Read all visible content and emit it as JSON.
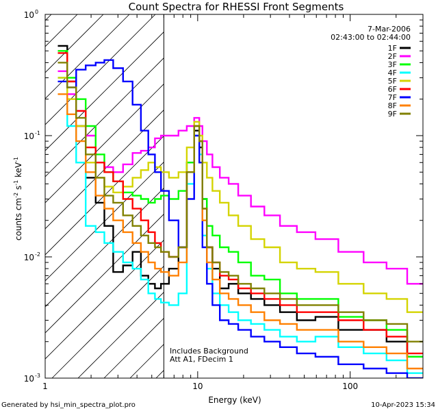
{
  "chart_data": {
    "type": "line",
    "title": "Count Spectra for RHESSI Front Segments",
    "xlabel": "Energy (keV)",
    "ylabel_parts": [
      "counts cm",
      "-2",
      " s",
      "-1",
      " keV",
      "-1"
    ],
    "x_scale": "log",
    "y_scale": "log",
    "xlim": [
      1.0,
      300.0
    ],
    "ylim": [
      0.001,
      1.0
    ],
    "x_ticks": [
      {
        "value": 1,
        "label": "1"
      },
      {
        "value": 10,
        "label": "10"
      },
      {
        "value": 100,
        "label": "100"
      }
    ],
    "y_ticks": [
      {
        "value": 1.0,
        "base": "10",
        "exp": "0"
      },
      {
        "value": 0.1,
        "base": "10",
        "exp": "-1"
      },
      {
        "value": 0.01,
        "base": "10",
        "exp": "-2"
      },
      {
        "value": 0.001,
        "base": "10",
        "exp": "-3"
      }
    ],
    "hatched_region": {
      "x_from": 1.0,
      "x_to": 6.0
    },
    "date": "7-Mar-2006",
    "time_range": "02:43:00 to 02:44:00",
    "annotations": [
      "Includes Background",
      "Att A1, FDecim 1"
    ],
    "footer_left": "Generated by hsi_min_spectra_plot.pro",
    "footer_right": "10-Apr-2023 15:34",
    "series": [
      {
        "name": "1F",
        "color": "#000000",
        "x": [
          1.3,
          1.5,
          1.7,
          2.0,
          2.3,
          2.6,
          3.0,
          3.5,
          4.0,
          4.5,
          5.0,
          5.5,
          6.0,
          7.0,
          8.0,
          9.0,
          10.0,
          10.5,
          11.0,
          12.0,
          13.0,
          15.0,
          17.0,
          20.0,
          25.0,
          30.0,
          40.0,
          50.0,
          70.0,
          100.0,
          150.0,
          200.0,
          280.0
        ],
        "y": [
          0.55,
          0.28,
          0.12,
          0.045,
          0.028,
          0.018,
          0.0075,
          0.0085,
          0.011,
          0.007,
          0.006,
          0.0055,
          0.006,
          0.008,
          0.012,
          0.06,
          0.11,
          0.08,
          0.03,
          0.012,
          0.008,
          0.0055,
          0.006,
          0.005,
          0.0045,
          0.004,
          0.0035,
          0.003,
          0.0032,
          0.0025,
          0.0025,
          0.002,
          0.0015
        ]
      },
      {
        "name": "2F",
        "color": "#ff00ff",
        "x": [
          1.3,
          1.5,
          1.7,
          2.0,
          2.3,
          2.6,
          3.0,
          3.5,
          4.0,
          4.5,
          5.0,
          5.5,
          6.0,
          7.0,
          8.0,
          9.0,
          10.0,
          10.5,
          11.0,
          12.0,
          13.0,
          15.0,
          17.0,
          20.0,
          25.0,
          30.0,
          40.0,
          50.0,
          70.0,
          100.0,
          150.0,
          200.0,
          280.0
        ],
        "y": [
          0.34,
          0.22,
          0.16,
          0.1,
          0.06,
          0.055,
          0.05,
          0.058,
          0.072,
          0.075,
          0.08,
          0.095,
          0.1,
          0.1,
          0.11,
          0.12,
          0.14,
          0.12,
          0.09,
          0.07,
          0.055,
          0.045,
          0.04,
          0.032,
          0.026,
          0.022,
          0.018,
          0.016,
          0.014,
          0.011,
          0.009,
          0.008,
          0.006
        ]
      },
      {
        "name": "3F",
        "color": "#00ff00",
        "x": [
          1.3,
          1.5,
          1.7,
          2.0,
          2.3,
          2.6,
          3.0,
          3.5,
          4.0,
          4.5,
          5.0,
          5.5,
          6.0,
          7.0,
          8.0,
          9.0,
          10.0,
          10.5,
          11.0,
          12.0,
          13.0,
          15.0,
          17.0,
          20.0,
          25.0,
          30.0,
          40.0,
          50.0,
          70.0,
          100.0,
          150.0,
          200.0,
          280.0
        ],
        "y": [
          0.5,
          0.3,
          0.2,
          0.12,
          0.07,
          0.05,
          0.042,
          0.034,
          0.032,
          0.03,
          0.028,
          0.03,
          0.032,
          0.03,
          0.035,
          0.06,
          0.12,
          0.09,
          0.03,
          0.018,
          0.015,
          0.012,
          0.011,
          0.009,
          0.007,
          0.0065,
          0.005,
          0.0045,
          0.0045,
          0.0032,
          0.003,
          0.0025,
          0.0015
        ]
      },
      {
        "name": "4F",
        "color": "#00ffff",
        "x": [
          1.3,
          1.5,
          1.7,
          2.0,
          2.3,
          2.6,
          3.0,
          3.5,
          4.0,
          4.5,
          5.0,
          5.5,
          6.0,
          7.0,
          8.0,
          9.0,
          10.0,
          10.5,
          11.0,
          12.0,
          13.0,
          15.0,
          17.0,
          20.0,
          25.0,
          30.0,
          40.0,
          50.0,
          70.0,
          100.0,
          150.0,
          200.0,
          280.0
        ],
        "y": [
          0.3,
          0.12,
          0.06,
          0.018,
          0.016,
          0.013,
          0.011,
          0.009,
          0.008,
          0.0065,
          0.005,
          0.0045,
          0.0042,
          0.004,
          0.005,
          0.04,
          0.1,
          0.07,
          0.015,
          0.008,
          0.005,
          0.004,
          0.0035,
          0.003,
          0.0028,
          0.0025,
          0.0022,
          0.002,
          0.0022,
          0.0018,
          0.0016,
          0.0014,
          0.0011
        ]
      },
      {
        "name": "5F",
        "color": "#d4d400",
        "x": [
          1.3,
          1.5,
          1.7,
          2.0,
          2.3,
          2.6,
          3.0,
          3.5,
          4.0,
          4.5,
          5.0,
          5.5,
          6.0,
          7.0,
          8.0,
          9.0,
          10.0,
          10.5,
          11.0,
          12.0,
          13.0,
          15.0,
          17.0,
          20.0,
          25.0,
          30.0,
          40.0,
          50.0,
          70.0,
          100.0,
          150.0,
          200.0,
          280.0
        ],
        "y": [
          0.3,
          0.2,
          0.12,
          0.06,
          0.045,
          0.038,
          0.034,
          0.038,
          0.045,
          0.052,
          0.06,
          0.055,
          0.05,
          0.045,
          0.05,
          0.08,
          0.13,
          0.1,
          0.06,
          0.045,
          0.035,
          0.028,
          0.022,
          0.018,
          0.014,
          0.012,
          0.009,
          0.008,
          0.0075,
          0.006,
          0.005,
          0.0045,
          0.0035
        ]
      },
      {
        "name": "6F",
        "color": "#ff0000",
        "x": [
          1.3,
          1.5,
          1.7,
          2.0,
          2.3,
          2.6,
          3.0,
          3.5,
          4.0,
          4.5,
          5.0,
          5.5,
          6.0,
          7.0,
          8.0,
          9.0,
          10.0,
          10.5,
          11.0,
          12.0,
          13.0,
          15.0,
          17.0,
          20.0,
          25.0,
          30.0,
          40.0,
          50.0,
          70.0,
          100.0,
          150.0,
          200.0,
          280.0
        ],
        "y": [
          0.48,
          0.28,
          0.16,
          0.08,
          0.06,
          0.05,
          0.042,
          0.03,
          0.025,
          0.02,
          0.016,
          0.013,
          0.011,
          0.01,
          0.012,
          0.05,
          0.12,
          0.09,
          0.025,
          0.012,
          0.009,
          0.007,
          0.0065,
          0.0055,
          0.005,
          0.0045,
          0.004,
          0.0035,
          0.0035,
          0.003,
          0.0025,
          0.0022,
          0.0016
        ]
      },
      {
        "name": "7F",
        "color": "#0000ff",
        "x": [
          1.3,
          1.5,
          1.7,
          2.0,
          2.3,
          2.6,
          3.0,
          3.5,
          4.0,
          4.5,
          5.0,
          5.5,
          6.0,
          7.0,
          8.0,
          9.0,
          10.0,
          10.5,
          11.0,
          12.0,
          13.0,
          15.0,
          17.0,
          20.0,
          25.0,
          30.0,
          40.0,
          50.0,
          70.0,
          100.0,
          150.0,
          200.0,
          280.0
        ],
        "y": [
          0.28,
          0.25,
          0.35,
          0.38,
          0.4,
          0.42,
          0.36,
          0.28,
          0.18,
          0.11,
          0.07,
          0.05,
          0.035,
          0.02,
          0.012,
          0.03,
          0.1,
          0.06,
          0.012,
          0.006,
          0.004,
          0.003,
          0.0028,
          0.0025,
          0.0022,
          0.002,
          0.0018,
          0.0016,
          0.0015,
          0.0013,
          0.0012,
          0.0011,
          0.001
        ]
      },
      {
        "name": "8F",
        "color": "#ff8000",
        "x": [
          1.3,
          1.5,
          1.7,
          2.0,
          2.3,
          2.6,
          3.0,
          3.5,
          4.0,
          4.5,
          5.0,
          5.5,
          6.0,
          7.0,
          8.0,
          9.0,
          10.0,
          10.5,
          11.0,
          12.0,
          13.0,
          15.0,
          17.0,
          20.0,
          25.0,
          30.0,
          40.0,
          50.0,
          70.0,
          100.0,
          150.0,
          200.0,
          280.0
        ],
        "y": [
          0.22,
          0.15,
          0.09,
          0.05,
          0.032,
          0.025,
          0.02,
          0.016,
          0.013,
          0.011,
          0.009,
          0.008,
          0.0075,
          0.007,
          0.009,
          0.05,
          0.12,
          0.09,
          0.02,
          0.009,
          0.0065,
          0.005,
          0.0045,
          0.004,
          0.0035,
          0.003,
          0.0028,
          0.0025,
          0.0025,
          0.002,
          0.0018,
          0.0016,
          0.0012
        ]
      },
      {
        "name": "9F",
        "color": "#808000",
        "x": [
          1.3,
          1.5,
          1.7,
          2.0,
          2.3,
          2.6,
          3.0,
          3.5,
          4.0,
          4.5,
          5.0,
          5.5,
          6.0,
          7.0,
          8.0,
          9.0,
          10.0,
          10.5,
          11.0,
          12.0,
          13.0,
          15.0,
          17.0,
          20.0,
          25.0,
          30.0,
          40.0,
          50.0,
          70.0,
          100.0,
          150.0,
          200.0,
          280.0
        ],
        "y": [
          0.4,
          0.25,
          0.14,
          0.07,
          0.045,
          0.032,
          0.028,
          0.022,
          0.018,
          0.015,
          0.013,
          0.012,
          0.011,
          0.01,
          0.012,
          0.05,
          0.12,
          0.09,
          0.025,
          0.012,
          0.009,
          0.0075,
          0.007,
          0.006,
          0.0055,
          0.005,
          0.0045,
          0.004,
          0.004,
          0.0035,
          0.003,
          0.0028,
          0.002
        ]
      }
    ]
  }
}
